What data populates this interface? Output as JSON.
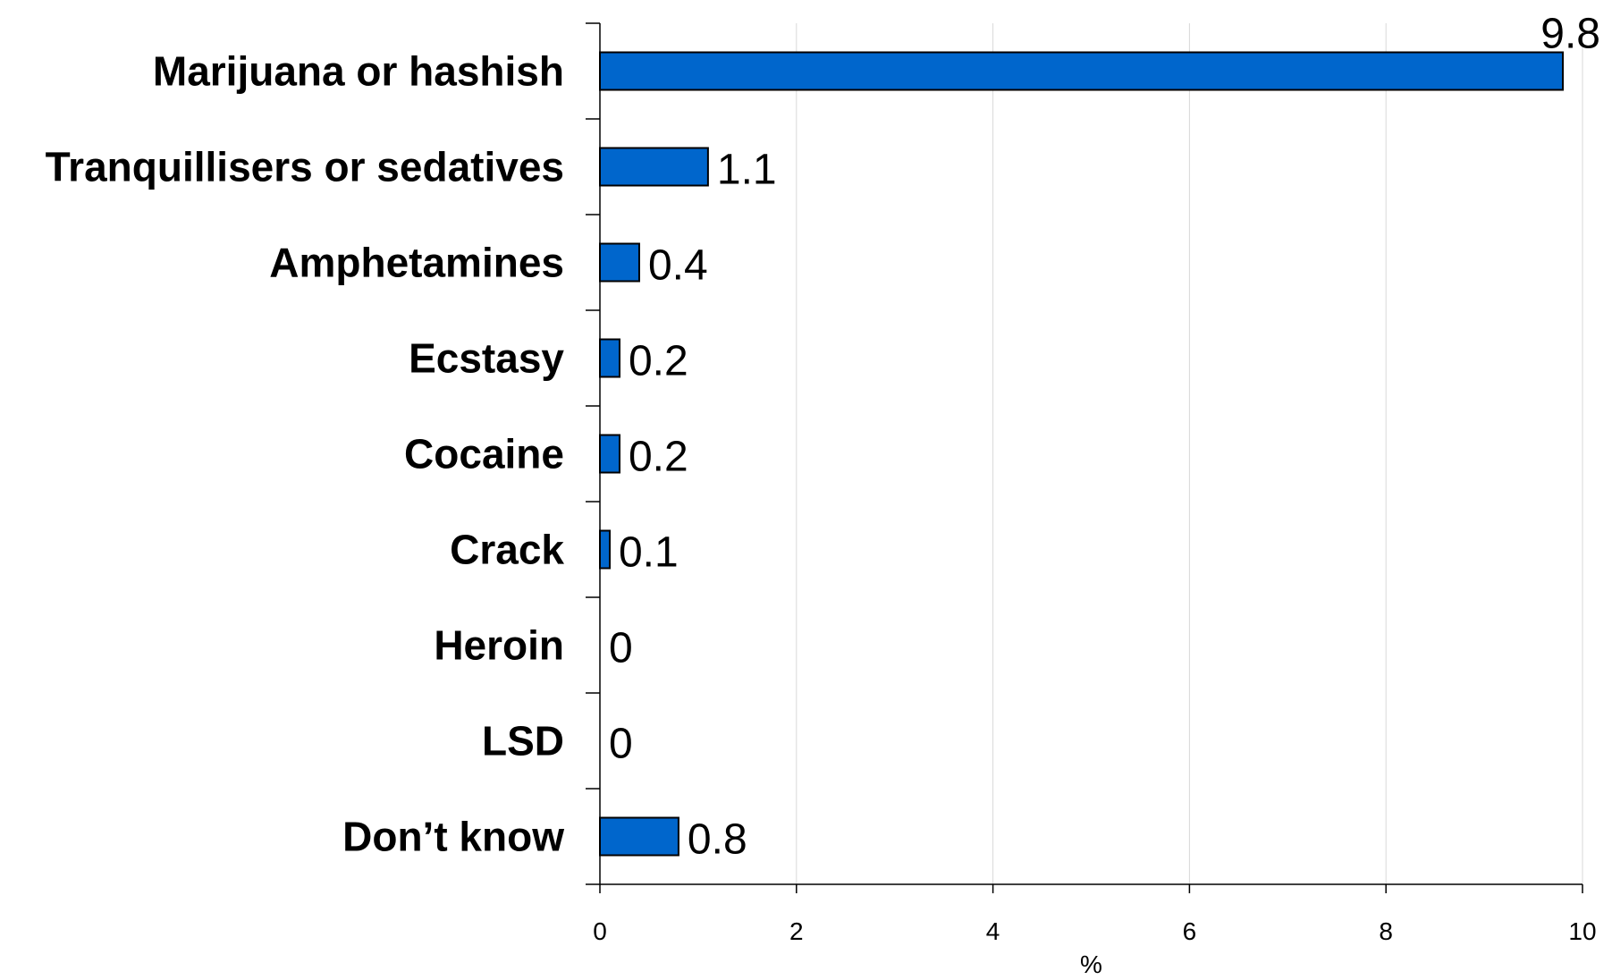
{
  "chart_data": {
    "type": "bar",
    "orientation": "horizontal",
    "categories": [
      "Marijuana or hashish",
      "Tranquillisers or sedatives",
      "Amphetamines",
      "Ecstasy",
      "Cocaine",
      "Crack",
      "Heroin",
      "LSD",
      "Don’t know"
    ],
    "values": [
      9.8,
      1.1,
      0.4,
      0.2,
      0.2,
      0.1,
      0,
      0,
      0.8
    ],
    "value_labels": [
      "9.8",
      "1.1",
      "0.4",
      "0.2",
      "0.2",
      "0.1",
      "0",
      "0",
      "0.8"
    ],
    "title": "",
    "xlabel": "%",
    "ylabel": "",
    "xlim": [
      0,
      10
    ],
    "xticks": [
      0,
      2,
      4,
      6,
      8,
      10
    ],
    "xtick_labels": [
      "0",
      "2",
      "4",
      "6",
      "8",
      "10"
    ],
    "grid": "vertical",
    "legend": "none",
    "bar_color": "#0066CC",
    "bar_outline": "#000000",
    "grid_color": "#d9d9d9"
  }
}
